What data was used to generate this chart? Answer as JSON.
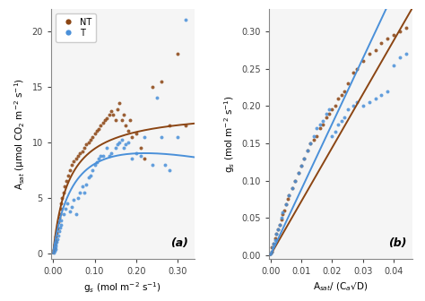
{
  "panel_a": {
    "NT_x": [
      0.002,
      0.003,
      0.004,
      0.005,
      0.006,
      0.007,
      0.008,
      0.01,
      0.012,
      0.014,
      0.016,
      0.018,
      0.02,
      0.022,
      0.025,
      0.028,
      0.032,
      0.036,
      0.04,
      0.045,
      0.05,
      0.055,
      0.06,
      0.065,
      0.07,
      0.075,
      0.08,
      0.085,
      0.09,
      0.095,
      0.1,
      0.105,
      0.11,
      0.115,
      0.12,
      0.125,
      0.13,
      0.135,
      0.14,
      0.145,
      0.15,
      0.155,
      0.16,
      0.165,
      0.17,
      0.175,
      0.18,
      0.185,
      0.19,
      0.2,
      0.21,
      0.22,
      0.24,
      0.26,
      0.28,
      0.3,
      0.32
    ],
    "NT_y": [
      0.3,
      0.5,
      0.8,
      1.0,
      1.2,
      1.5,
      1.8,
      2.2,
      2.8,
      3.2,
      3.5,
      4.0,
      4.5,
      5.0,
      5.5,
      6.0,
      6.5,
      7.0,
      7.5,
      8.0,
      8.3,
      8.5,
      8.8,
      9.0,
      9.2,
      9.5,
      9.8,
      10.0,
      10.2,
      10.5,
      10.8,
      11.0,
      11.2,
      11.5,
      11.8,
      12.0,
      12.2,
      12.5,
      12.8,
      12.5,
      12.0,
      13.0,
      13.5,
      12.0,
      12.5,
      11.5,
      11.0,
      12.0,
      10.5,
      10.8,
      9.5,
      8.5,
      15.0,
      15.5,
      11.5,
      18.0,
      11.5
    ],
    "T_x": [
      0.002,
      0.003,
      0.005,
      0.006,
      0.007,
      0.008,
      0.01,
      0.012,
      0.014,
      0.016,
      0.018,
      0.02,
      0.025,
      0.03,
      0.035,
      0.04,
      0.045,
      0.05,
      0.055,
      0.06,
      0.065,
      0.07,
      0.075,
      0.08,
      0.085,
      0.09,
      0.095,
      0.1,
      0.105,
      0.11,
      0.115,
      0.12,
      0.13,
      0.135,
      0.14,
      0.15,
      0.155,
      0.16,
      0.165,
      0.17,
      0.175,
      0.18,
      0.19,
      0.2,
      0.21,
      0.22,
      0.24,
      0.25,
      0.26,
      0.27,
      0.28,
      0.3,
      0.32
    ],
    "T_y": [
      0.1,
      0.2,
      0.4,
      0.6,
      0.8,
      1.0,
      1.3,
      1.6,
      2.0,
      2.3,
      2.6,
      3.0,
      3.5,
      4.0,
      4.5,
      3.8,
      4.2,
      4.8,
      3.5,
      5.0,
      5.5,
      6.0,
      5.5,
      6.2,
      6.8,
      7.0,
      7.5,
      8.0,
      8.2,
      8.5,
      8.8,
      8.8,
      9.5,
      8.8,
      9.0,
      9.5,
      9.8,
      10.0,
      10.2,
      9.5,
      9.8,
      10.0,
      8.5,
      9.0,
      8.8,
      10.5,
      8.0,
      14.0,
      10.5,
      8.0,
      7.5,
      10.5,
      21.0
    ],
    "xlabel": "g$_s$ (mol m$^{-2}$ s$^{-1}$)",
    "ylabel": "A$_{sat}$ (μmol CO$_2$ m$^{-2}$ s$^{-1}$)",
    "ylim": [
      -0.5,
      22
    ],
    "xlim": [
      -0.005,
      0.34
    ],
    "xticks": [
      0.0,
      0.1,
      0.2,
      0.3
    ],
    "yticks": [
      0,
      5,
      10,
      15,
      20
    ],
    "label": "(a)",
    "nt_a": 13.0,
    "nt_b": 0.038,
    "t_a": 13.5,
    "t_b": 0.055,
    "t_c": 0.75
  },
  "panel_b": {
    "NT_x": [
      0.0003,
      0.0005,
      0.001,
      0.0015,
      0.002,
      0.0025,
      0.003,
      0.0035,
      0.004,
      0.0045,
      0.005,
      0.0055,
      0.006,
      0.007,
      0.008,
      0.009,
      0.01,
      0.011,
      0.012,
      0.013,
      0.014,
      0.015,
      0.016,
      0.017,
      0.018,
      0.019,
      0.02,
      0.021,
      0.022,
      0.023,
      0.024,
      0.025,
      0.027,
      0.028,
      0.03,
      0.032,
      0.034,
      0.036,
      0.038,
      0.04,
      0.042,
      0.044
    ],
    "NT_y": [
      0.005,
      0.01,
      0.015,
      0.022,
      0.028,
      0.035,
      0.04,
      0.048,
      0.055,
      0.06,
      0.068,
      0.075,
      0.08,
      0.09,
      0.1,
      0.11,
      0.12,
      0.13,
      0.14,
      0.15,
      0.155,
      0.16,
      0.17,
      0.175,
      0.185,
      0.19,
      0.195,
      0.2,
      0.21,
      0.215,
      0.22,
      0.23,
      0.245,
      0.25,
      0.26,
      0.27,
      0.275,
      0.285,
      0.29,
      0.295,
      0.3,
      0.305
    ],
    "T_x": [
      0.0002,
      0.0004,
      0.0007,
      0.001,
      0.0015,
      0.002,
      0.0025,
      0.003,
      0.0035,
      0.004,
      0.005,
      0.006,
      0.007,
      0.008,
      0.009,
      0.01,
      0.011,
      0.012,
      0.013,
      0.014,
      0.015,
      0.016,
      0.017,
      0.018,
      0.019,
      0.02,
      0.021,
      0.022,
      0.023,
      0.024,
      0.025,
      0.027,
      0.028,
      0.03,
      0.032,
      0.034,
      0.036,
      0.038,
      0.04,
      0.042,
      0.044
    ],
    "T_y": [
      0.002,
      0.005,
      0.01,
      0.015,
      0.02,
      0.028,
      0.035,
      0.04,
      0.05,
      0.058,
      0.068,
      0.08,
      0.09,
      0.1,
      0.11,
      0.12,
      0.13,
      0.14,
      0.15,
      0.16,
      0.17,
      0.175,
      0.18,
      0.19,
      0.195,
      0.16,
      0.165,
      0.175,
      0.18,
      0.185,
      0.195,
      0.2,
      0.205,
      0.2,
      0.205,
      0.21,
      0.215,
      0.22,
      0.255,
      0.265,
      0.27
    ],
    "xlabel": "A$_{sat}$/ (C$_a$√D)",
    "ylabel": "g$_s$ (mol m$^{-2}$ s$^{-1}$)",
    "ylim": [
      -0.005,
      0.33
    ],
    "xlim": [
      -0.0005,
      0.046
    ],
    "xticks": [
      0.0,
      0.01,
      0.02,
      0.03,
      0.04
    ],
    "yticks": [
      0.0,
      0.05,
      0.1,
      0.15,
      0.2,
      0.25,
      0.3
    ],
    "label": "(b)",
    "nt_slope": 7.2,
    "t_slope": 8.8
  },
  "NT_color": "#8B4513",
  "T_color": "#4A90D9",
  "dot_size": 8,
  "line_width": 1.4,
  "bg_color": "#F5F5F5"
}
